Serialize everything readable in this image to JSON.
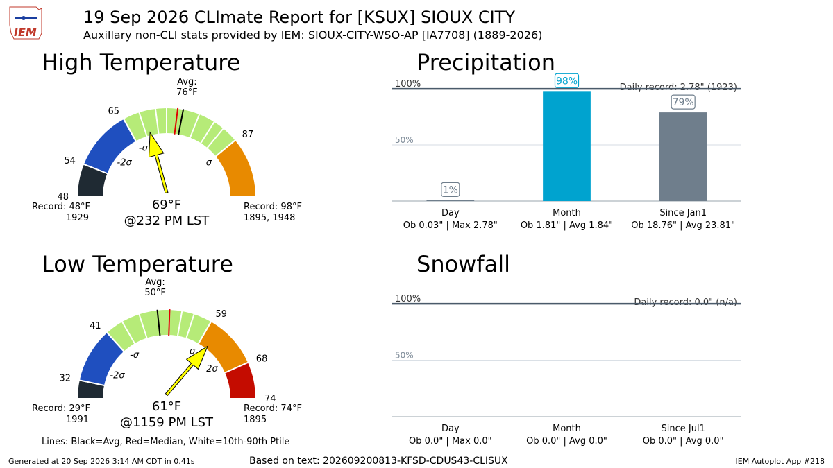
{
  "header": {
    "title": "19 Sep 2026 CLImate Report for [KSUX] SIOUX CITY",
    "subtitle": "Auxillary non-CLI stats provided by IEM: SIOUX-CITY-WSO-AP [IA7708] (1889-2026)",
    "logo_text": "IEM"
  },
  "footer": {
    "left": "Generated at 20 Sep 2026 3:14 AM CDT in 0.41s",
    "center": "Based on text: 202609200813-KFSD-CDUS43-CLISUX",
    "right": "IEM Autoplot App #218"
  },
  "colors": {
    "band_low_rec": "#1f2a33",
    "band_m2": "#1f4fbf",
    "band_m1": "#1f4fbf",
    "band_norm": "#b6eb78",
    "band_p1": "#e88a00",
    "band_p2": "#e88a00",
    "band_hi_rec": "#c40c00",
    "arrow": "#ffff00",
    "precip_month": "#00a3cf",
    "precip_ytd": "#6f7e8c",
    "precip_day": "#6f7e8c"
  },
  "chart_data": [
    {
      "type": "gauge",
      "title": "High Temperature",
      "range": [
        48,
        98
      ],
      "avg": 76,
      "avg_label": "Avg:",
      "avg_value_label": "76°F",
      "median": 75,
      "ptile_lines": [
        65,
        68,
        71,
        73,
        79,
        82,
        84,
        87
      ],
      "observed": 69,
      "observed_label": "69°F",
      "observed_time": "@232 PM LST",
      "tick_labels": [
        {
          "value": 48,
          "text": "48"
        },
        {
          "value": 54,
          "text": "54"
        },
        {
          "value": 65,
          "text": "65"
        },
        {
          "value": 87,
          "text": "87"
        }
      ],
      "sigma_labels": [
        {
          "value": 59,
          "text": "-2σ"
        },
        {
          "value": 66,
          "text": "-σ"
        },
        {
          "value": 87,
          "text": "σ"
        }
      ],
      "bands": [
        {
          "from": 48,
          "to": 54,
          "color_key": "band_low_rec"
        },
        {
          "from": 54,
          "to": 65,
          "color_key": "band_m2"
        },
        {
          "from": 65,
          "to": 87,
          "color_key": "band_norm"
        },
        {
          "from": 87,
          "to": 98,
          "color_key": "band_p1"
        }
      ],
      "record_low": "Record: 48°F",
      "record_low_years": "1929",
      "record_high": "Record: 98°F",
      "record_high_years": "1895, 1948"
    },
    {
      "type": "gauge",
      "title": "Low Temperature",
      "range": [
        29,
        74
      ],
      "avg": 50,
      "avg_label": "Avg:",
      "avg_value_label": "50°F",
      "median": 52,
      "ptile_lines": [
        41,
        44,
        47,
        52,
        54,
        56,
        59
      ],
      "observed": 61,
      "observed_label": "61°F",
      "observed_time": "@1159 PM LST",
      "tick_labels": [
        {
          "value": 32,
          "text": "32"
        },
        {
          "value": 41,
          "text": "41"
        },
        {
          "value": 59,
          "text": "59"
        },
        {
          "value": 68,
          "text": "68"
        },
        {
          "value": 74,
          "text": "74"
        }
      ],
      "sigma_labels": [
        {
          "value": 35.5,
          "text": "-2σ"
        },
        {
          "value": 42.5,
          "text": "-σ"
        },
        {
          "value": 58.5,
          "text": "σ"
        },
        {
          "value": 65.5,
          "text": "2σ"
        }
      ],
      "bands": [
        {
          "from": 29,
          "to": 32,
          "color_key": "band_low_rec"
        },
        {
          "from": 32,
          "to": 41,
          "color_key": "band_m2"
        },
        {
          "from": 41,
          "to": 59,
          "color_key": "band_norm"
        },
        {
          "from": 59,
          "to": 68,
          "color_key": "band_p1"
        },
        {
          "from": 68,
          "to": 74,
          "color_key": "band_hi_rec"
        }
      ],
      "record_low": "Record: 29°F",
      "record_low_years": "1991",
      "record_high": "Record: 74°F",
      "record_high_years": "1895"
    },
    {
      "type": "bar",
      "title": "Precipitation",
      "record_note": "Daily record: 2.78\" (1923)",
      "y_ref_labels": [
        "100%",
        "50%"
      ],
      "ylim": [
        0,
        105
      ],
      "categories": [
        "Day",
        "Month",
        "Since Jan1"
      ],
      "details": [
        "Ob 0.03\" | Max 2.78\"",
        "Ob 1.81\" | Avg 1.84\"",
        "Ob 18.76\" | Avg 23.81\""
      ],
      "values": [
        1,
        98,
        79
      ],
      "value_labels": [
        "1%",
        "98%",
        "79%"
      ],
      "color_keys": [
        "precip_day",
        "precip_month",
        "precip_ytd"
      ]
    },
    {
      "type": "bar",
      "title": "Snowfall",
      "record_note": "Daily record: 0.0\" (n/a)",
      "y_ref_labels": [
        "100%",
        "50%"
      ],
      "ylim": [
        0,
        105
      ],
      "categories": [
        "Day",
        "Month",
        "Since Jul1"
      ],
      "details": [
        "Ob 0.0\" | Max 0.0\"",
        "Ob 0.0\" | Avg 0.0\"",
        "Ob 0.0\" | Avg 0.0\""
      ],
      "values": [
        0,
        0,
        0
      ],
      "value_labels": [
        "",
        "",
        ""
      ],
      "color_keys": [
        "precip_day",
        "precip_month",
        "precip_ytd"
      ]
    }
  ],
  "legend_note": "Lines: Black=Avg, Red=Median, White=10th-90th Ptile"
}
